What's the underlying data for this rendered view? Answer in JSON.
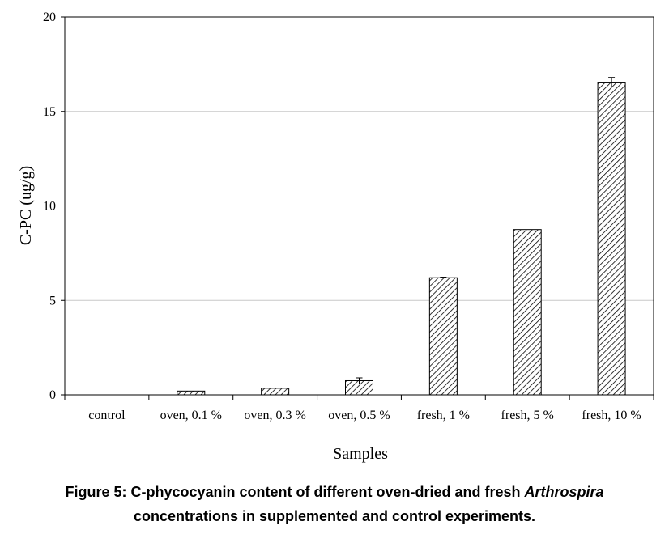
{
  "chart_data": {
    "type": "bar",
    "categories": [
      "control",
      "oven, 0.1 %",
      "oven, 0.3 %",
      "oven, 0.5 %",
      "fresh, 1 %",
      "fresh, 5 %",
      "fresh, 10 %"
    ],
    "values": [
      0,
      0.2,
      0.35,
      0.75,
      6.2,
      8.75,
      16.55
    ],
    "errors": [
      0,
      0,
      0,
      0.15,
      0.03,
      0,
      0.25
    ],
    "xlabel": "Samples",
    "ylabel": "C-PC (ug/g)",
    "ylim": [
      0,
      20
    ],
    "yticks": [
      "0",
      "5",
      "10",
      "15",
      "20"
    ],
    "grid": "horizontal",
    "bar_fill": "diagonal hatch",
    "colors": {
      "bar_stroke": "#000000",
      "hatch": "#000000",
      "grid": "#c8c8c8"
    }
  },
  "caption": {
    "line1_prefix": "Figure 5: C-phycocyanin content of different oven-dried and fresh ",
    "line1_italic": "Arthrospira",
    "line2": "concentrations in supplemented and control experiments."
  }
}
